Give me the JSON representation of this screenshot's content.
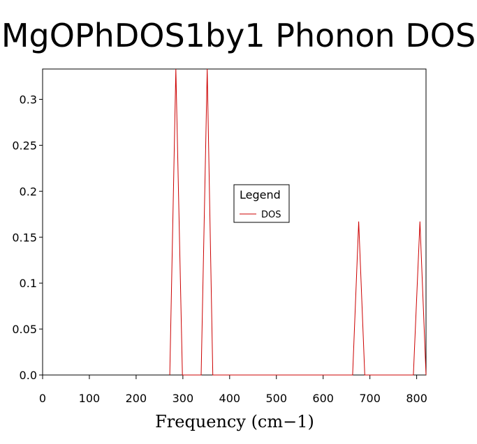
{
  "chart_data": {
    "type": "line",
    "title": "MgOPhDOS1by1 Phonon DOS",
    "xlabel": "Frequency (cm−1)",
    "ylabel": "",
    "xlim": [
      0,
      820
    ],
    "ylim": [
      0,
      0.333
    ],
    "x_ticks": [
      0,
      100,
      200,
      300,
      400,
      500,
      600,
      700,
      800
    ],
    "y_ticks": [
      0.0,
      0.05,
      0.1,
      0.15,
      0.2,
      0.25,
      0.3
    ],
    "y_tick_labels": [
      "0.0",
      "0.05",
      "0.1",
      "0.15",
      "0.2",
      "0.25",
      "0.3"
    ],
    "grid": false,
    "legend": {
      "title": "Legend",
      "placement": "center-right"
    },
    "series": [
      {
        "name": "DOS",
        "color": "#cc0000",
        "points": [
          [
            272,
            0
          ],
          [
            285,
            0.333
          ],
          [
            299,
            0
          ],
          [
            339,
            0
          ],
          [
            352,
            0.333
          ],
          [
            364,
            0
          ],
          [
            663,
            0
          ],
          [
            676,
            0.167
          ],
          [
            689,
            0
          ],
          [
            793,
            0
          ],
          [
            807,
            0.167
          ],
          [
            820,
            0
          ]
        ]
      }
    ]
  }
}
